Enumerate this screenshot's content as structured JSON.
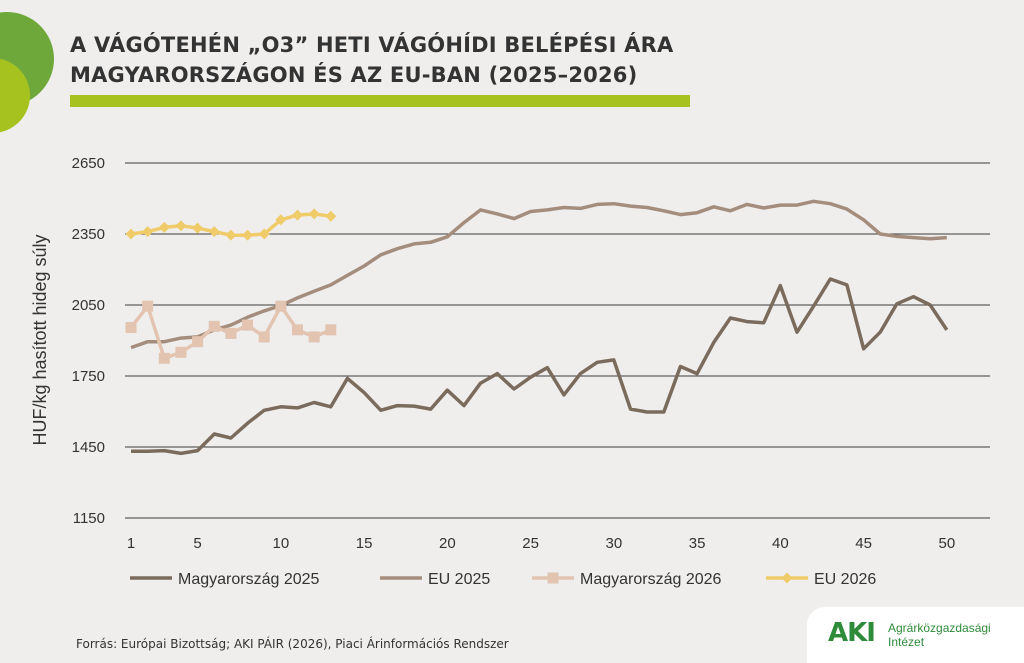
{
  "header": {
    "title_line1": "A VÁGÓTEHÉN „O3” HETI VÁGÓHÍDI BELÉPÉSI ÁRA",
    "title_line2": "MAGYARORSZÁGON ÉS AZ EU-BAN (2025–2026)"
  },
  "colors": {
    "accent_green": "#a6c21f",
    "magyarorszag_2025": "#7b6b5c",
    "eu_2025": "#a58d7d",
    "magyarorszag_2026": "#e2c4b0",
    "eu_2026": "#f0cb6a"
  },
  "chart_data": {
    "type": "line",
    "ylabel": "HUF/kg hasított hideg súly",
    "xlabel": "",
    "ylim": [
      1150,
      2650
    ],
    "yticks": [
      1150,
      1450,
      1750,
      2050,
      2350,
      2650
    ],
    "xlim": [
      1,
      52
    ],
    "xticks": [
      1,
      5,
      10,
      15,
      20,
      25,
      30,
      35,
      40,
      45,
      50
    ],
    "grid": true,
    "legend_position": "bottom",
    "series": [
      {
        "name": "Magyarország 2025",
        "marker": "none",
        "x": [
          1,
          2,
          3,
          4,
          5,
          6,
          7,
          8,
          9,
          10,
          11,
          12,
          13,
          14,
          15,
          16,
          17,
          18,
          19,
          20,
          21,
          22,
          23,
          24,
          25,
          26,
          27,
          28,
          29,
          30,
          31,
          32,
          33,
          34,
          35,
          36,
          37,
          38,
          39,
          40,
          41,
          42,
          43,
          44,
          45,
          46,
          47,
          48,
          49,
          50
        ],
        "values": [
          1432,
          1432,
          1435,
          1423,
          1435,
          1505,
          1488,
          1550,
          1605,
          1620,
          1615,
          1638,
          1620,
          1740,
          1680,
          1605,
          1625,
          1623,
          1610,
          1690,
          1625,
          1720,
          1760,
          1695,
          1745,
          1785,
          1670,
          1760,
          1808,
          1818,
          1610,
          1598,
          1598,
          1790,
          1760,
          1892,
          1995,
          1980,
          1975,
          2132,
          1935,
          2045,
          2160,
          2135,
          1865,
          1935,
          2055,
          2085,
          2050,
          1945
        ]
      },
      {
        "name": "EU 2025",
        "marker": "none",
        "x": [
          1,
          2,
          3,
          4,
          5,
          6,
          7,
          8,
          9,
          10,
          11,
          12,
          13,
          14,
          15,
          16,
          17,
          18,
          19,
          20,
          21,
          22,
          23,
          24,
          25,
          26,
          27,
          28,
          29,
          30,
          31,
          32,
          33,
          34,
          35,
          36,
          37,
          38,
          39,
          40,
          41,
          42,
          43,
          44,
          45,
          46,
          47,
          48,
          49,
          50
        ],
        "values": [
          1870,
          1895,
          1895,
          1910,
          1915,
          1945,
          1965,
          1998,
          2025,
          2048,
          2080,
          2108,
          2135,
          2175,
          2215,
          2262,
          2288,
          2308,
          2315,
          2338,
          2398,
          2452,
          2435,
          2415,
          2445,
          2452,
          2462,
          2458,
          2475,
          2478,
          2468,
          2462,
          2448,
          2432,
          2440,
          2465,
          2448,
          2475,
          2460,
          2472,
          2472,
          2488,
          2478,
          2455,
          2410,
          2350,
          2340,
          2335,
          2330,
          2335
        ]
      },
      {
        "name": "Magyarország 2026",
        "marker": "square",
        "x": [
          1,
          2,
          3,
          4,
          5,
          6,
          7,
          8,
          9,
          10,
          11,
          12,
          13
        ],
        "values": [
          1955,
          2045,
          1825,
          1850,
          1895,
          1960,
          1930,
          1965,
          1915,
          2045,
          1945,
          1915,
          1945
        ]
      },
      {
        "name": "EU 2026",
        "marker": "diamond",
        "x": [
          1,
          2,
          3,
          4,
          5,
          6,
          7,
          8,
          9,
          10,
          11,
          12,
          13
        ],
        "values": [
          2350,
          2360,
          2378,
          2385,
          2375,
          2360,
          2345,
          2345,
          2350,
          2410,
          2430,
          2435,
          2425
        ]
      }
    ]
  },
  "footer": {
    "source": "Forrás: Európai Bizottság; AKI PÁIR (2026), Piaci Árinformációs Rendszer",
    "logo_mark": "AKI",
    "logo_line1": "Agrárközgazdasági",
    "logo_line2": "Intézet"
  }
}
